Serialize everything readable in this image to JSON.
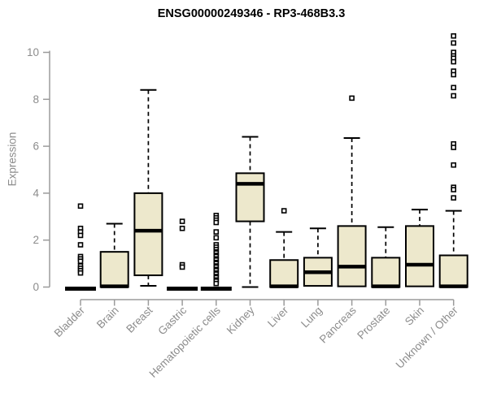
{
  "chart_data": {
    "type": "boxplot",
    "title": "ENSG00000249346 - RP3-468B3.3",
    "ylabel": "Expression",
    "xlabel": "",
    "ylim": [
      0,
      10.8
    ],
    "yticks": [
      0,
      2,
      4,
      6,
      8,
      10
    ],
    "grid": false,
    "legend": "none",
    "categories": [
      "Bladder",
      "Brain",
      "Breast",
      "Gastric",
      "Hematopoietic cells",
      "Kidney",
      "Liver",
      "Lung",
      "Pancreas",
      "Prostate",
      "Skin",
      "Unknown / Other"
    ],
    "series": [
      {
        "category": "Bladder",
        "whisker_low": 0,
        "q1": 0,
        "median": 0,
        "q3": 0,
        "whisker_high": 0,
        "outliers": [
          3.45,
          2.5,
          2.35,
          2.2,
          1.8,
          1.3,
          1.2,
          1.1,
          0.9,
          0.8,
          0.7,
          0.6
        ]
      },
      {
        "category": "Brain",
        "whisker_low": 0,
        "q1": 0,
        "median": 0.03,
        "q3": 1.5,
        "whisker_high": 2.7,
        "outliers": []
      },
      {
        "category": "Breast",
        "whisker_low": 0.05,
        "q1": 0.5,
        "median": 2.4,
        "q3": 4.0,
        "whisker_high": 8.4,
        "outliers": []
      },
      {
        "category": "Gastric",
        "whisker_low": 0,
        "q1": 0,
        "median": 0,
        "q3": 0,
        "whisker_high": 0,
        "outliers": [
          2.8,
          2.5,
          0.95,
          0.85
        ]
      },
      {
        "category": "Hematopoietic cells",
        "whisker_low": 0,
        "q1": 0,
        "median": 0,
        "q3": 0,
        "whisker_high": 0,
        "outliers": [
          3.05,
          2.95,
          2.85,
          2.75,
          2.35,
          2.1,
          1.8,
          1.7,
          1.6,
          1.5,
          1.45,
          1.35,
          1.3,
          1.2,
          1.15,
          1.05,
          1.0,
          0.9,
          0.85,
          0.75,
          0.7,
          0.6,
          0.55,
          0.45,
          0.4,
          0.3,
          0.25,
          0.15
        ]
      },
      {
        "category": "Kidney",
        "whisker_low": 0,
        "q1": 2.8,
        "median": 4.4,
        "q3": 4.85,
        "whisker_high": 6.4,
        "outliers": []
      },
      {
        "category": "Liver",
        "whisker_low": 0,
        "q1": 0,
        "median": 0.03,
        "q3": 1.15,
        "whisker_high": 2.35,
        "outliers": [
          3.25
        ]
      },
      {
        "category": "Lung",
        "whisker_low": 0,
        "q1": 0.05,
        "median": 0.63,
        "q3": 1.25,
        "whisker_high": 2.5,
        "outliers": []
      },
      {
        "category": "Pancreas",
        "whisker_low": 0,
        "q1": 0.03,
        "median": 0.87,
        "q3": 2.6,
        "whisker_high": 6.35,
        "outliers": [
          8.05
        ]
      },
      {
        "category": "Prostate",
        "whisker_low": 0,
        "q1": 0,
        "median": 0.03,
        "q3": 1.25,
        "whisker_high": 2.55,
        "outliers": []
      },
      {
        "category": "Skin",
        "whisker_low": 0,
        "q1": 0.03,
        "median": 0.95,
        "q3": 2.6,
        "whisker_high": 3.3,
        "outliers": []
      },
      {
        "category": "Unknown / Other",
        "whisker_low": 0,
        "q1": 0,
        "median": 0.03,
        "q3": 1.35,
        "whisker_high": 3.25,
        "outliers": [
          10.7,
          10.4,
          10.0,
          9.85,
          9.75,
          9.6,
          9.2,
          9.05,
          8.5,
          8.15,
          6.1,
          5.95,
          5.2,
          4.25,
          4.15,
          3.8
        ]
      }
    ],
    "colors": {
      "box_fill": "#EDE8CC",
      "box_border": "#000000",
      "median": "#000000",
      "whisker": "#000000",
      "outlier_stroke": "#000000",
      "outlier_fill": "#ffffff",
      "axis": "#9b9b9b",
      "tick_label": "#8c8c8c",
      "title": "#000000",
      "background": "#ffffff"
    }
  }
}
